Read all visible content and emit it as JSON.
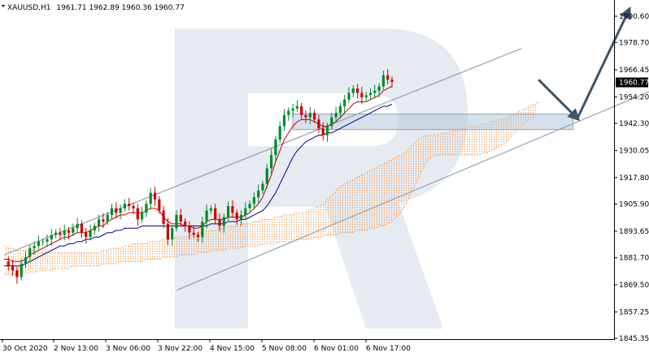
{
  "header": {
    "symbol_timeframe": "XAUUSD,H1",
    "ohlc": "1961.71 1962.89 1960.36 1960.77"
  },
  "current_price_label": "1960.77",
  "colors": {
    "bull": "#008a2e",
    "bear": "#d00000",
    "tenkan": "#c00000",
    "kijun": "#00008b",
    "cloud": "#f4a460",
    "channel": "#9aa0a6",
    "arrow": "#3d5468",
    "zone_fill": "#b5c6d8",
    "watermark": "#e6ebf1",
    "price_tag_bg": "#000000"
  },
  "chart_data": {
    "type": "candlestick",
    "instrument": "XAUUSD",
    "timeframe": "H1",
    "y_axis": {
      "ticks": [
        "1990.60",
        "1978.70",
        "1966.45",
        "1954.20",
        "1942.30",
        "1930.05",
        "1917.80",
        "1905.90",
        "1893.65",
        "1881.70",
        "1869.50",
        "1857.25",
        "1845.35"
      ],
      "range": [
        1845.35,
        1990.6
      ]
    },
    "x_axis": {
      "ticks": [
        "30 Oct 2020",
        "2 Nov 13:00",
        "3 Nov 06:00",
        "3 Nov 22:00",
        "4 Nov 15:00",
        "5 Nov 08:00",
        "6 Nov 01:00",
        "6 Nov 17:00"
      ]
    },
    "price_path": [
      1880,
      1878,
      1876,
      1873,
      1879,
      1882,
      1886,
      1887,
      1889,
      1889,
      1890,
      1892,
      1893,
      1892,
      1894,
      1893,
      1895,
      1897,
      1893,
      1891,
      1894,
      1896,
      1899,
      1898,
      1901,
      1904,
      1902,
      1904,
      1906,
      1905,
      1904,
      1899,
      1902,
      1906,
      1911,
      1908,
      1903,
      1897,
      1890,
      1895,
      1901,
      1898,
      1896,
      1893,
      1892,
      1891,
      1898,
      1903,
      1904,
      1899,
      1896,
      1900,
      1905,
      1902,
      1899,
      1901,
      1904,
      1906,
      1909,
      1912,
      1915,
      1922,
      1928,
      1935,
      1941,
      1946,
      1948,
      1949,
      1950,
      1946,
      1945,
      1947,
      1944,
      1940,
      1937,
      1941,
      1945,
      1947,
      1950,
      1953,
      1956,
      1958,
      1956,
      1954,
      1955,
      1956,
      1957,
      1959,
      1964,
      1962,
      1961
    ],
    "tenkan_path": [
      1881,
      1881,
      1880,
      1880,
      1880,
      1881,
      1883,
      1884,
      1885,
      1886,
      1887,
      1888,
      1889,
      1890,
      1891,
      1891,
      1892,
      1893,
      1893,
      1893,
      1894,
      1895,
      1896,
      1896,
      1898,
      1899,
      1900,
      1901,
      1901,
      1902,
      1902,
      1902,
      1902,
      1903,
      1904,
      1904,
      1903,
      1900,
      1898,
      1897,
      1897,
      1897,
      1896,
      1896,
      1895,
      1895,
      1896,
      1898,
      1899,
      1899,
      1899,
      1899,
      1900,
      1900,
      1900,
      1900,
      1901,
      1902,
      1904,
      1906,
      1909,
      1914,
      1919,
      1925,
      1930,
      1935,
      1938,
      1941,
      1943,
      1944,
      1944,
      1944,
      1943,
      1942,
      1941,
      1941,
      1942,
      1943,
      1945,
      1947,
      1949,
      1951,
      1952,
      1952,
      1952,
      1953,
      1954,
      1955,
      1957,
      1958,
      1959
    ],
    "kijun_path": [
      1878,
      1878,
      1878,
      1878,
      1878,
      1879,
      1880,
      1881,
      1882,
      1883,
      1884,
      1885,
      1886,
      1887,
      1887,
      1888,
      1888,
      1889,
      1889,
      1890,
      1890,
      1891,
      1891,
      1892,
      1893,
      1893,
      1894,
      1894,
      1895,
      1895,
      1895,
      1895,
      1896,
      1896,
      1896,
      1896,
      1896,
      1896,
      1896,
      1896,
      1896,
      1896,
      1896,
      1896,
      1896,
      1896,
      1896,
      1896,
      1897,
      1897,
      1897,
      1897,
      1898,
      1898,
      1898,
      1899,
      1899,
      1900,
      1901,
      1902,
      1903,
      1905,
      1908,
      1911,
      1915,
      1919,
      1923,
      1927,
      1930,
      1932,
      1934,
      1935,
      1936,
      1937,
      1937,
      1938,
      1938,
      1939,
      1940,
      1941,
      1942,
      1943,
      1944,
      1945,
      1946,
      1947,
      1948,
      1949,
      1950,
      1950,
      1951
    ],
    "cloud_upper": [
      1887,
      1886,
      1886,
      1885,
      1885,
      1885,
      1885,
      1885,
      1884,
      1884,
      1884,
      1884,
      1884,
      1884,
      1884,
      1884,
      1884,
      1884,
      1884,
      1884,
      1884,
      1884,
      1884,
      1885,
      1885,
      1886,
      1886,
      1886,
      1887,
      1887,
      1888,
      1888,
      1888,
      1888,
      1889,
      1889,
      1889,
      1890,
      1890,
      1890,
      1891,
      1891,
      1891,
      1892,
      1892,
      1893,
      1893,
      1894,
      1894,
      1894,
      1895,
      1895,
      1896,
      1896,
      1896,
      1897,
      1897,
      1897,
      1898,
      1898,
      1899,
      1899,
      1899,
      1900,
      1900,
      1901,
      1901,
      1901,
      1902,
      1902,
      1902,
      1903,
      1904,
      1905,
      1906,
      1908,
      1910,
      1912,
      1914,
      1915,
      1916,
      1917,
      1918,
      1919,
      1920,
      1921,
      1922,
      1923,
      1924,
      1925,
      1926,
      1927,
      1928,
      1929,
      1931,
      1933,
      1935,
      1936,
      1937,
      1937,
      1937,
      1937,
      1938,
      1938,
      1939,
      1939,
      1940,
      1940,
      1941,
      1941,
      1941,
      1942,
      1942,
      1943,
      1943,
      1944,
      1944,
      1945,
      1946,
      1947,
      1948,
      1949,
      1950,
      1951,
      1952
    ],
    "cloud_lower": [
      1874,
      1874,
      1874,
      1874,
      1875,
      1875,
      1875,
      1875,
      1876,
      1876,
      1876,
      1876,
      1877,
      1877,
      1877,
      1877,
      1878,
      1878,
      1878,
      1878,
      1878,
      1878,
      1878,
      1879,
      1879,
      1879,
      1879,
      1880,
      1880,
      1880,
      1880,
      1880,
      1880,
      1881,
      1881,
      1881,
      1881,
      1882,
      1882,
      1882,
      1882,
      1883,
      1883,
      1883,
      1883,
      1884,
      1884,
      1884,
      1885,
      1885,
      1885,
      1885,
      1886,
      1886,
      1886,
      1886,
      1887,
      1887,
      1887,
      1887,
      1888,
      1888,
      1888,
      1888,
      1889,
      1889,
      1889,
      1889,
      1890,
      1890,
      1890,
      1890,
      1891,
      1891,
      1891,
      1892,
      1892,
      1892,
      1893,
      1893,
      1893,
      1893,
      1894,
      1894,
      1894,
      1895,
      1895,
      1896,
      1896,
      1897,
      1898,
      1900,
      1902,
      1905,
      1909,
      1913,
      1917,
      1921,
      1925,
      1927,
      1928,
      1928,
      1928,
      1928,
      1928,
      1928,
      1928,
      1928,
      1928,
      1928,
      1928,
      1929,
      1929,
      1930,
      1931,
      1932,
      1933,
      1935,
      1937,
      1939,
      1941,
      1943,
      1944,
      1945
    ],
    "channel_upper": {
      "start": [
        0,
        1883
      ],
      "end": [
        120,
        1976
      ]
    },
    "channel_lower": {
      "start": [
        40,
        1867
      ],
      "end": [
        160,
        1965
      ]
    },
    "resistance_zone": {
      "from": 1939.5,
      "to": 1946.5,
      "start_bar": 67,
      "end_bar": 132
    },
    "forecast_path": [
      [
        124,
        1962
      ],
      [
        133,
        1944.5
      ],
      [
        145,
        1993.5
      ]
    ],
    "watermark_letter": "R"
  }
}
